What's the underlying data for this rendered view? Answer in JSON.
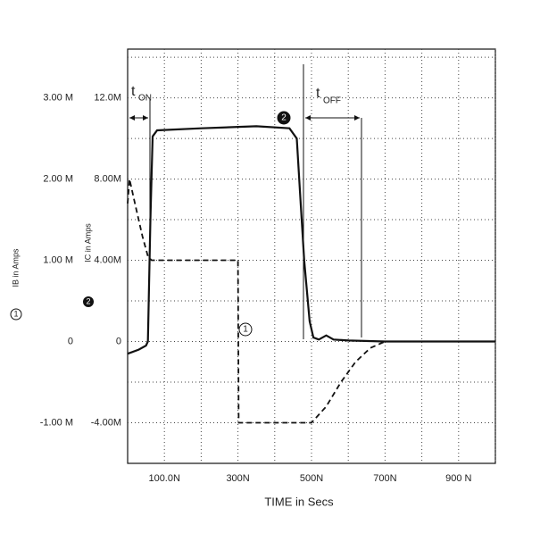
{
  "chart_data": {
    "type": "line",
    "xlabel": "TIME in Secs",
    "ylabel": "IB in Amps",
    "ylabel_marker": "1",
    "y2label": "IC in Amps",
    "y2label_marker": "2",
    "xlim": [
      0,
      1000
    ],
    "xticks": [
      {
        "value": 100,
        "label": "100.0N"
      },
      {
        "value": 300,
        "label": "300N"
      },
      {
        "value": 500,
        "label": "500N"
      },
      {
        "value": 700,
        "label": "700N"
      },
      {
        "value": 900,
        "label": "900 N"
      }
    ],
    "ylim": [
      -1.5,
      3.6
    ],
    "yticks": [
      {
        "value": -1,
        "label": "-1.00 M"
      },
      0,
      {
        "value": 1,
        "label": "1.00 M"
      },
      {
        "value": 2,
        "label": "2.00 M"
      },
      {
        "value": 3,
        "label": "3.00 M"
      }
    ],
    "y2lim": [
      -6,
      14.4
    ],
    "y2ticks": [
      {
        "value": -4,
        "label": "-4.00M"
      },
      0,
      {
        "value": 4,
        "label": "4.00M"
      },
      {
        "value": 8,
        "label": "8.00M"
      },
      {
        "value": 12,
        "label": "12.0M"
      }
    ],
    "grid": true,
    "series": [
      {
        "color": "#111111",
        "dash": false,
        "axis": "y2",
        "marker": "2",
        "x": [
          0,
          30,
          50,
          55,
          62,
          68,
          80,
          200,
          350,
          440,
          460,
          470,
          480,
          495,
          505,
          520,
          540,
          560,
          600,
          700,
          1000
        ],
        "values": [
          -0.6,
          -0.4,
          -0.2,
          0,
          6,
          10.1,
          10.4,
          10.5,
          10.6,
          10.5,
          10,
          7,
          4,
          1,
          0.2,
          0.1,
          0.3,
          0.1,
          0.05,
          0,
          0
        ]
      },
      {
        "color": "#111111",
        "dash": true,
        "axis": "y",
        "marker": "1",
        "x": [
          0,
          5,
          20,
          40,
          55,
          65,
          300,
          302,
          500,
          540,
          580,
          620,
          660,
          700,
          1000
        ],
        "values": [
          1.7,
          2.0,
          1.7,
          1.3,
          1.05,
          1.0,
          1.0,
          -1.0,
          -1.0,
          -0.8,
          -0.5,
          -0.25,
          -0.08,
          0,
          0
        ]
      }
    ],
    "annotations": [
      {
        "text": "t",
        "sub": "ON"
      },
      {
        "text": "t",
        "sub": "OFF"
      }
    ]
  }
}
